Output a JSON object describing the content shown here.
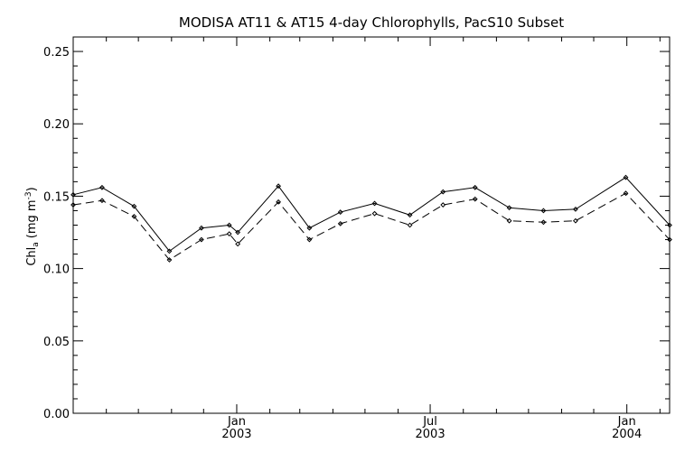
{
  "chart_data": {
    "type": "line",
    "title": "MODISA AT11 & AT15 4-day Chlorophylls, PacS10 Subset",
    "ylabel_main": "Chl",
    "ylabel_sub": "a",
    "ylabel_unit": "(mg m",
    "ylabel_sup": "-3",
    "ylabel_close": ")",
    "xlabel": "",
    "ylim": [
      0.0,
      0.26
    ],
    "xlim": [
      "2002-08-01",
      "2004-02-10"
    ],
    "yticks": [
      0.0,
      0.05,
      0.1,
      0.15,
      0.2,
      0.25
    ],
    "ytick_labels": [
      "0.00",
      "0.05",
      "0.10",
      "0.15",
      "0.20",
      "0.25"
    ],
    "xtick_labels": [
      {
        "date": "2003-01-01",
        "month": "Jan",
        "year": "2003"
      },
      {
        "date": "2003-07-01",
        "month": "Jul",
        "year": "2003"
      },
      {
        "date": "2004-01-01",
        "month": "Jan",
        "year": "2004"
      }
    ],
    "x_minor_ticks": [
      "2002-09-01",
      "2002-10-01",
      "2002-11-01",
      "2002-12-01",
      "2003-01-01",
      "2003-02-01",
      "2003-03-01",
      "2003-04-01",
      "2003-05-01",
      "2003-06-01",
      "2003-07-01",
      "2003-08-01",
      "2003-09-01",
      "2003-10-01",
      "2003-11-01",
      "2003-12-01",
      "2004-01-01",
      "2004-02-01"
    ],
    "grid": false,
    "series": [
      {
        "line_style": "solid",
        "color": "#000000",
        "x": [
          "2002-08-01",
          "2002-08-28",
          "2002-09-27",
          "2002-10-30",
          "2002-11-29",
          "2002-12-25",
          "2003-01-02",
          "2003-02-09",
          "2003-03-10",
          "2003-04-08",
          "2003-05-10",
          "2003-06-12",
          "2003-07-13",
          "2003-08-12",
          "2003-09-13",
          "2003-10-15",
          "2003-11-14",
          "2003-12-31",
          "2004-02-10"
        ],
        "values": [
          0.151,
          0.156,
          0.143,
          0.112,
          0.128,
          0.13,
          0.125,
          0.157,
          0.128,
          0.139,
          0.145,
          0.137,
          0.153,
          0.156,
          0.142,
          0.14,
          0.141,
          0.163,
          0.13
        ]
      },
      {
        "line_style": "dashed",
        "color": "#000000",
        "x": [
          "2002-08-01",
          "2002-08-28",
          "2002-09-27",
          "2002-10-30",
          "2002-11-29",
          "2002-12-25",
          "2003-01-02",
          "2003-02-09",
          "2003-03-10",
          "2003-04-08",
          "2003-05-10",
          "2003-06-12",
          "2003-07-13",
          "2003-08-12",
          "2003-09-13",
          "2003-10-15",
          "2003-11-14",
          "2003-12-31",
          "2004-02-10"
        ],
        "values": [
          0.144,
          0.147,
          0.136,
          0.106,
          0.12,
          0.124,
          0.117,
          0.146,
          0.12,
          0.131,
          0.138,
          0.13,
          0.144,
          0.148,
          0.133,
          0.132,
          0.133,
          0.152,
          0.12
        ]
      }
    ]
  }
}
